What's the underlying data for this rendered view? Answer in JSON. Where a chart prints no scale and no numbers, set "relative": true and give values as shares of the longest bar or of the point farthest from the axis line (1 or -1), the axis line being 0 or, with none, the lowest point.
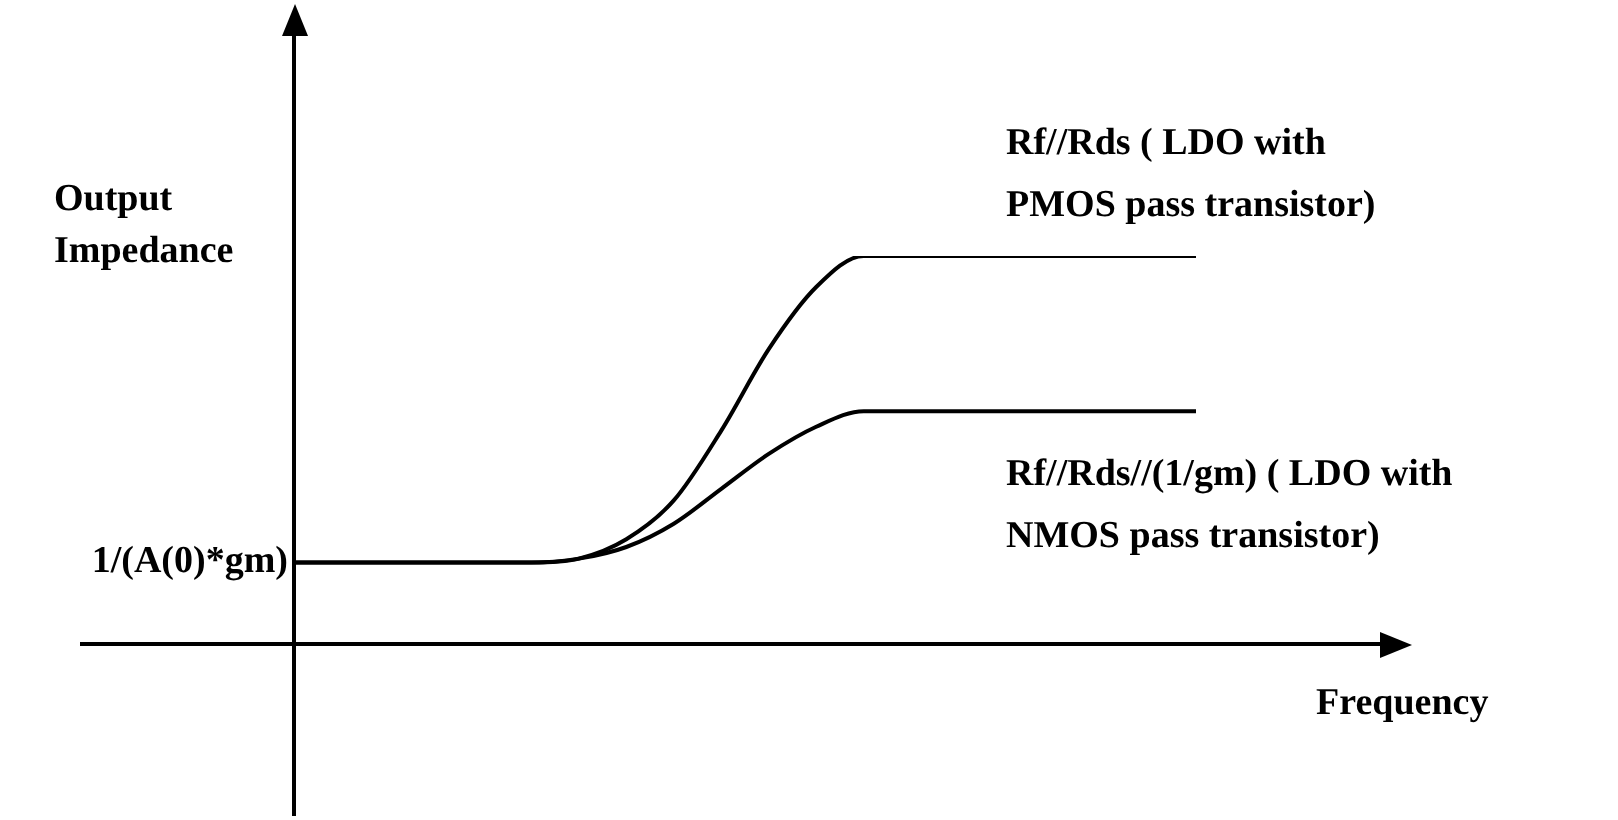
{
  "chart_data": {
    "type": "line",
    "relative": true,
    "xlabel": "Frequency",
    "ylabel": "Output Impedance",
    "marker": "none",
    "line_style": "solid",
    "legend": false,
    "categories": [
      null,
      null,
      null,
      null,
      null,
      null,
      null,
      null,
      null,
      null,
      null,
      null,
      null,
      null,
      null,
      null,
      null,
      null,
      null,
      null
    ],
    "series": [
      {
        "name": "Rf//Rds ( LDO with\nPMOS pass transistor)",
        "color": "#000000",
        "values": [
          0.21,
          0.21,
          0.21,
          0.21,
          0.21,
          0.21,
          0.22,
          0.27,
          0.37,
          0.55,
          0.76,
          0.92,
          1,
          1,
          1,
          1,
          1,
          1,
          1,
          1
        ]
      },
      {
        "name": "Rf//Rds//(1/gm) ( LDO with\nNMOS pass transistor)",
        "color": "#000000",
        "values": [
          0.21,
          0.21,
          0.21,
          0.21,
          0.21,
          0.21,
          0.22,
          0.25,
          0.31,
          0.4,
          0.49,
          0.56,
          0.6,
          0.6,
          0.6,
          0.6,
          0.6,
          0.6,
          0.6,
          0.6
        ]
      }
    ],
    "annotations": [
      "1/(A(0)*gm)"
    ]
  }
}
